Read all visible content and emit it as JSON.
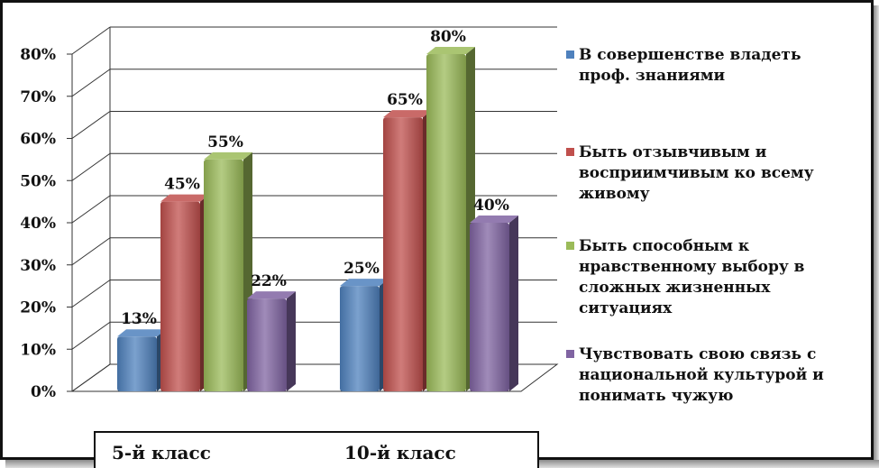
{
  "chart_data": {
    "type": "bar",
    "categories": [
      "5-й класс",
      "10-й класс"
    ],
    "series": [
      {
        "name": "В совершенстве владеть проф. знаниями",
        "values": [
          13,
          25
        ],
        "color": "#4F81BD"
      },
      {
        "name": "Быть отзывчивым и восприимчивым ко всему живому",
        "values": [
          45,
          65
        ],
        "color": "#C0504D"
      },
      {
        "name": "Быть способным к нравственному выбору в сложных жизненных ситуациях",
        "values": [
          55,
          80
        ],
        "color": "#9BBB59"
      },
      {
        "name": "Чувствовать свою связь с национальной культурой и понимать чужую",
        "values": [
          22,
          40
        ],
        "color": "#8064A2"
      }
    ],
    "data_labels": [
      [
        "13%",
        "25%"
      ],
      [
        "45%",
        "65%"
      ],
      [
        "55%",
        "80%"
      ],
      [
        "22%",
        "40%"
      ]
    ],
    "y_ticks": [
      "0%",
      "10%",
      "20%",
      "30%",
      "40%",
      "50%",
      "60%",
      "70%",
      "80%"
    ],
    "ylim": [
      0,
      80
    ],
    "grid": true,
    "legend_position": "right",
    "title": "",
    "xlabel": "",
    "ylabel": ""
  },
  "legend": {
    "items": [
      {
        "lines": [
          "В совершенстве владеть",
          "проф. знаниями"
        ],
        "color": "#4F81BD"
      },
      {
        "lines": [
          "Быть отзывчивым и",
          "восприимчивым ко всему",
          "живому"
        ],
        "color": "#C0504D"
      },
      {
        "lines": [
          "Быть способным к",
          "нравственному выбору в",
          "сложных жизненных",
          "ситуациях"
        ],
        "color": "#9BBB59"
      },
      {
        "lines": [
          "Чувствовать свою связь с",
          "национальной культурой и",
          "понимать чужую"
        ],
        "color": "#8064A2"
      }
    ]
  },
  "category_labels": {
    "first": "5-й класс",
    "second": "10-й класс"
  }
}
